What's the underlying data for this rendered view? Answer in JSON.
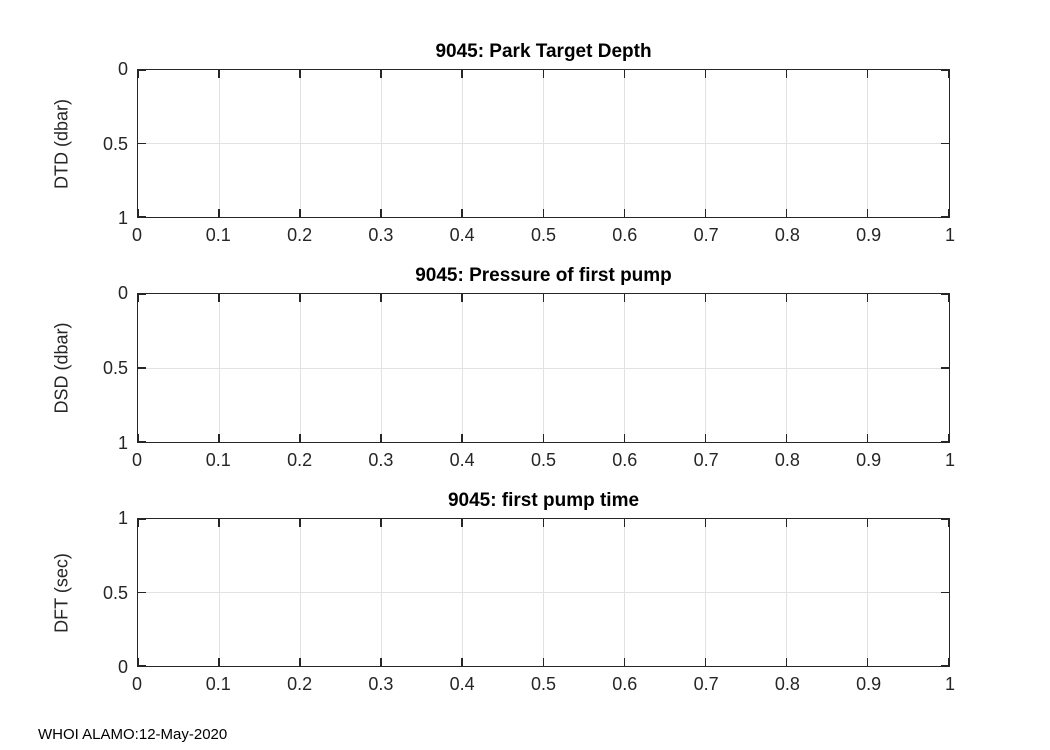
{
  "figure": {
    "background": "#ffffff",
    "axis_color": "#262626",
    "grid_color": "#e2e2e2",
    "footer": "WHOI ALAMO:12-May-2020"
  },
  "chart_data": [
    {
      "type": "line",
      "title": "9045: Park Target Depth",
      "xlabel": "",
      "ylabel": "DTD (dbar)",
      "xlim": [
        0,
        1
      ],
      "ylim": [
        0,
        1
      ],
      "y_reversed": true,
      "grid": true,
      "legend": null,
      "xticks": [
        0,
        0.1,
        0.2,
        0.3,
        0.4,
        0.5,
        0.6,
        0.7,
        0.8,
        0.9,
        1
      ],
      "xtick_labels": [
        "0",
        "0.1",
        "0.2",
        "0.3",
        "0.4",
        "0.5",
        "0.6",
        "0.7",
        "0.8",
        "0.9",
        "1"
      ],
      "yticks": [
        0,
        0.5,
        1
      ],
      "ytick_labels": [
        "0",
        "0.5",
        "1"
      ],
      "series": []
    },
    {
      "type": "line",
      "title": "9045: Pressure of first pump",
      "xlabel": "",
      "ylabel": "DSD (dbar)",
      "xlim": [
        0,
        1
      ],
      "ylim": [
        0,
        1
      ],
      "y_reversed": true,
      "grid": true,
      "legend": null,
      "xticks": [
        0,
        0.1,
        0.2,
        0.3,
        0.4,
        0.5,
        0.6,
        0.7,
        0.8,
        0.9,
        1
      ],
      "xtick_labels": [
        "0",
        "0.1",
        "0.2",
        "0.3",
        "0.4",
        "0.5",
        "0.6",
        "0.7",
        "0.8",
        "0.9",
        "1"
      ],
      "yticks": [
        0,
        0.5,
        1
      ],
      "ytick_labels": [
        "0",
        "0.5",
        "1"
      ],
      "series": []
    },
    {
      "type": "line",
      "title": "9045: first pump time",
      "xlabel": "",
      "ylabel": "DFT (sec)",
      "xlim": [
        0,
        1
      ],
      "ylim": [
        0,
        1
      ],
      "y_reversed": false,
      "grid": true,
      "legend": null,
      "xticks": [
        0,
        0.1,
        0.2,
        0.3,
        0.4,
        0.5,
        0.6,
        0.7,
        0.8,
        0.9,
        1
      ],
      "xtick_labels": [
        "0",
        "0.1",
        "0.2",
        "0.3",
        "0.4",
        "0.5",
        "0.6",
        "0.7",
        "0.8",
        "0.9",
        "1"
      ],
      "yticks": [
        0,
        0.5,
        1
      ],
      "ytick_labels": [
        "0",
        "0.5",
        "1"
      ],
      "series": []
    }
  ]
}
